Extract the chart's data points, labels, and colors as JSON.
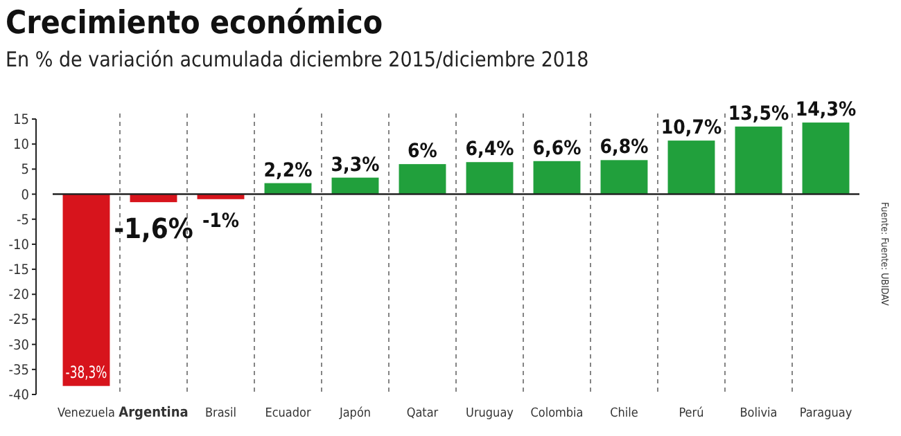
{
  "chart_data": {
    "type": "bar",
    "title": "Crecimiento económico",
    "subtitle": "En % de variación acumulada diciembre 2015/diciembre 2018",
    "categories": [
      "Venezuela",
      "Argentina",
      "Brasil",
      "Ecuador",
      "Japón",
      "Qatar",
      "Uruguay",
      "Colombia",
      "Chile",
      "Perú",
      "Bolivia",
      "Paraguay"
    ],
    "values": [
      -38.3,
      -1.6,
      -1,
      2.2,
      3.3,
      6,
      6.4,
      6.6,
      6.8,
      10.7,
      13.5,
      14.3
    ],
    "colors": [
      "#d7141c",
      "#d7141c",
      "#d7141c",
      "#21a03c",
      "#21a03c",
      "#21a03c",
      "#21a03c",
      "#21a03c",
      "#21a03c",
      "#21a03c",
      "#21a03c",
      "#21a03c"
    ],
    "value_labels": [
      "-38,3%",
      "-1,6%",
      "-1%",
      "2,2%",
      "3,3%",
      "6%",
      "6,4%",
      "6,6%",
      "6,8%",
      "10,7%",
      "13,5%",
      "14,3%"
    ],
    "ylim": [
      -40,
      15
    ],
    "yticks": [
      15,
      10,
      5,
      0,
      -5,
      -10,
      -15,
      -20,
      -25,
      -30,
      -35,
      -40
    ],
    "grid": "x",
    "annotations": [
      "Fuente: Fuente: UBIDAV"
    ]
  }
}
